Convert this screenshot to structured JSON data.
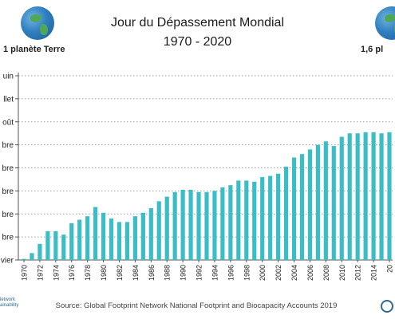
{
  "header": {
    "title": "Jour du Dépassement Mondial",
    "subtitle": "1970 - 2020",
    "left_caption": "1 planète Terre",
    "right_caption": "1,6 pl",
    "left_globe_icon": "earth-globe-icon",
    "right_globe_icon": "earth-globe-icon"
  },
  "footer": {
    "source": "Source: Global Footprint Network National Footprint and Biocapacity Accounts 2019",
    "logo_text_line1": "letwork",
    "logo_text_line2": "ainability",
    "right_logo_icon": "footprint-globe-logo-icon"
  },
  "chart_data": {
    "type": "bar",
    "title": "Jour du Dépassement Mondial",
    "subtitle": "1970 - 2020",
    "bar_color": "#3bbdc6",
    "y_ticks": [
      "uin",
      "llet",
      "oût",
      "bre",
      "bre",
      "bre",
      "bre",
      "bre",
      "vier"
    ],
    "y_tick_levels": [
      8,
      7,
      6,
      5,
      4,
      3,
      2,
      1,
      0
    ],
    "ylim": [
      0,
      8
    ],
    "x_tick_labels": [
      "1970",
      "1972",
      "1974",
      "1976",
      "1978",
      "1980",
      "1982",
      "1984",
      "1986",
      "1988",
      "1990",
      "1992",
      "1994",
      "1996",
      "1998",
      "2000",
      "2002",
      "2004",
      "2006",
      "2008",
      "2010",
      "2012",
      "2014",
      "20"
    ],
    "years": [
      1970,
      1971,
      1972,
      1973,
      1974,
      1975,
      1976,
      1977,
      1978,
      1979,
      1980,
      1981,
      1982,
      1983,
      1984,
      1985,
      1986,
      1987,
      1988,
      1989,
      1990,
      1991,
      1992,
      1993,
      1994,
      1995,
      1996,
      1997,
      1998,
      1999,
      2000,
      2001,
      2002,
      2003,
      2004,
      2005,
      2006,
      2007,
      2008,
      2009,
      2010,
      2011,
      2012,
      2013,
      2014,
      2015,
      2016
    ],
    "values": [
      0.05,
      0.3,
      0.7,
      1.25,
      1.25,
      1.1,
      1.6,
      1.75,
      1.9,
      2.3,
      2.05,
      1.8,
      1.65,
      1.65,
      1.9,
      2.05,
      2.25,
      2.55,
      2.75,
      2.95,
      3.05,
      3.05,
      2.95,
      2.95,
      3.0,
      3.15,
      3.25,
      3.45,
      3.45,
      3.4,
      3.6,
      3.65,
      3.75,
      4.05,
      4.45,
      4.6,
      4.8,
      5.0,
      5.15,
      4.95,
      5.35,
      5.5,
      5.5,
      5.55,
      5.55,
      5.5,
      5.55
    ]
  }
}
